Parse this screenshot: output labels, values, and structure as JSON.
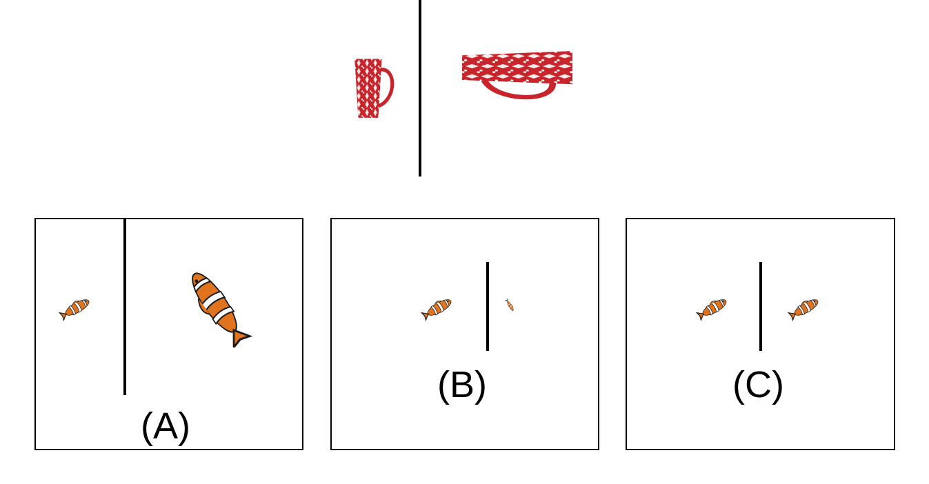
{
  "example": {
    "left_object": "tall-red-mug",
    "right_object": "tall-red-mug-rotated-enlarged"
  },
  "options": [
    {
      "label": "(A)",
      "left_object": "clownfish",
      "right_object": "clownfish-rotated-enlarged"
    },
    {
      "label": "(B)",
      "left_object": "clownfish",
      "right_object": "clownfish-shrunk"
    },
    {
      "label": "(C)",
      "left_object": "clownfish",
      "right_object": "clownfish"
    }
  ],
  "colors": {
    "mug_red": "#c8242b",
    "mug_pattern": "#ffffff",
    "fish_orange": "#e0731e",
    "fish_stripe": "#ffffff",
    "fish_edge": "#1a1a1a"
  }
}
